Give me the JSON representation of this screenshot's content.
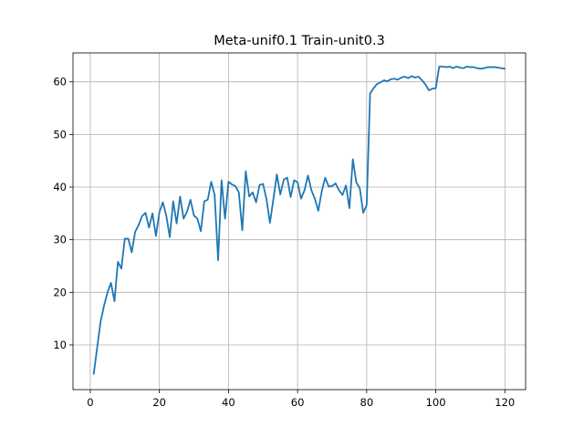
{
  "chart_data": {
    "type": "line",
    "title": "Meta-unif0.1 Train-unit0.3",
    "xlabel": "",
    "ylabel": "",
    "xlim": [
      -5,
      126
    ],
    "ylim": [
      1.5,
      65.5
    ],
    "x_ticks": [
      0,
      20,
      40,
      60,
      80,
      100,
      120
    ],
    "y_ticks": [
      10,
      20,
      30,
      40,
      50,
      60
    ],
    "grid": true,
    "line_color": "#1f77b4",
    "series": [
      {
        "x": [
          1,
          2,
          3,
          4,
          5,
          6,
          7,
          8,
          9,
          10,
          11,
          12,
          13,
          14,
          15,
          16,
          17,
          18,
          19,
          20,
          21,
          22,
          23,
          24,
          25,
          26,
          27,
          28,
          29,
          30,
          31,
          32,
          33,
          34,
          35,
          36,
          37,
          38,
          39,
          40,
          41,
          42,
          43,
          44,
          45,
          46,
          47,
          48,
          49,
          50,
          51,
          52,
          53,
          54,
          55,
          56,
          57,
          58,
          59,
          60,
          61,
          62,
          63,
          64,
          65,
          66,
          67,
          68,
          69,
          70,
          71,
          72,
          73,
          74,
          75,
          76,
          77,
          78,
          79,
          80,
          81,
          82,
          83,
          84,
          85,
          86,
          87,
          88,
          89,
          90,
          91,
          92,
          93,
          94,
          95,
          96,
          97,
          98,
          99,
          100,
          101,
          102,
          103,
          104,
          105,
          106,
          107,
          108,
          109,
          110,
          111,
          112,
          113,
          114,
          115,
          116,
          117,
          118,
          119,
          120
        ],
        "values": [
          4.5,
          9.5,
          14.5,
          17.5,
          20.0,
          21.8,
          18.3,
          25.8,
          24.5,
          30.2,
          30.2,
          27.6,
          31.5,
          32.8,
          34.5,
          35.1,
          32.3,
          35.0,
          30.7,
          35.2,
          37.1,
          34.6,
          30.5,
          37.3,
          33.1,
          38.2,
          34.0,
          35.3,
          37.6,
          34.6,
          34.0,
          31.6,
          37.3,
          37.6,
          41.0,
          38.5,
          26.1,
          41.3,
          34.0,
          41.0,
          40.5,
          40.2,
          39.0,
          31.8,
          43.0,
          38.2,
          39.0,
          37.1,
          40.4,
          40.6,
          37.7,
          33.2,
          37.7,
          42.4,
          38.6,
          41.4,
          41.8,
          38.1,
          41.3,
          40.9,
          37.8,
          39.4,
          42.2,
          39.4,
          37.8,
          35.5,
          39.2,
          41.8,
          40.1,
          40.2,
          40.7,
          39.4,
          38.5,
          40.3,
          36.0,
          45.3,
          40.9,
          39.8,
          35.1,
          36.6,
          57.8,
          58.8,
          59.6,
          59.9,
          60.3,
          60.1,
          60.5,
          60.6,
          60.4,
          60.8,
          61.0,
          60.7,
          61.1,
          60.8,
          61.0,
          60.3,
          59.5,
          58.4,
          58.7,
          58.8,
          62.9,
          62.9,
          62.8,
          62.9,
          62.6,
          62.9,
          62.7,
          62.6,
          62.9,
          62.8,
          62.8,
          62.6,
          62.5,
          62.6,
          62.8,
          62.8,
          62.8,
          62.7,
          62.6,
          62.5
        ]
      }
    ]
  }
}
